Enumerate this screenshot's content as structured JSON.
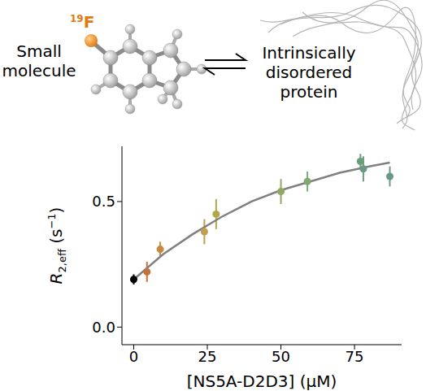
{
  "diagram": {
    "molecule_label": "Small molecule",
    "isotope": {
      "mass_number": "19",
      "element": "F"
    },
    "protein_label": "Intrinsically disordered protein"
  },
  "chart_data": {
    "type": "scatter",
    "x_label": "[NS5A-D2D3] (μM)",
    "y_label": [
      {
        "text": "R",
        "style": "italic"
      },
      {
        "text": "2,eff",
        "style": "sub"
      },
      {
        "text": " (s",
        "style": "normal"
      },
      {
        "text": "−1",
        "style": "sup"
      },
      {
        "text": ")",
        "style": "normal"
      }
    ],
    "x": [
      0,
      4.5,
      9,
      24,
      28,
      50,
      59,
      77,
      78,
      87
    ],
    "values": [
      0.19,
      0.22,
      0.31,
      0.38,
      0.45,
      0.54,
      0.58,
      0.66,
      0.63,
      0.6
    ],
    "errors": [
      0.02,
      0.04,
      0.03,
      0.05,
      0.06,
      0.05,
      0.04,
      0.03,
      0.05,
      0.04
    ],
    "colors": [
      "#000000",
      "#c4703a",
      "#c88a40",
      "#c0a050",
      "#b0a848",
      "#90a860",
      "#7fa870",
      "#6a9e7a",
      "#6a9a80",
      "#6a9888"
    ],
    "marker": "circle",
    "fit": {
      "x": [
        0,
        10,
        20,
        30,
        40,
        50,
        60,
        70,
        80,
        87
      ],
      "values": [
        0.19,
        0.29,
        0.37,
        0.44,
        0.5,
        0.545,
        0.58,
        0.615,
        0.64,
        0.655
      ],
      "color": "#808080",
      "line_style": "solid"
    },
    "xlim": [
      -4,
      91
    ],
    "xticks": [
      0,
      25,
      50,
      75
    ],
    "ylim": [
      -0.07,
      0.72
    ],
    "yticks": [
      {
        "value": 0,
        "label": "0.0"
      },
      {
        "value": 0.5,
        "label": "0.5"
      }
    ],
    "grid": false
  }
}
